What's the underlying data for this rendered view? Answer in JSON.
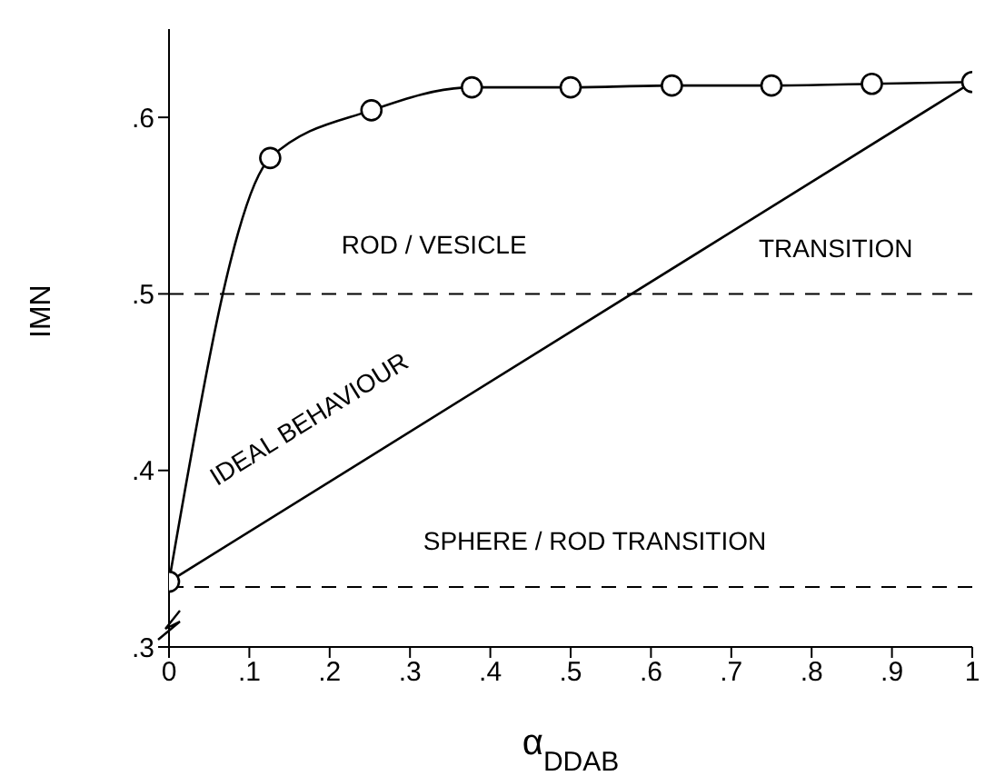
{
  "chart_data": {
    "type": "line",
    "xlabel": "α$_{DDAB}$",
    "ylabel": "IMN",
    "xlim": [
      0,
      1
    ],
    "ylim": [
      0.3,
      0.65
    ],
    "xticks": [
      0,
      {
        "value": 0.1,
        "label": ".1"
      },
      {
        "value": 0.2,
        "label": ".2"
      },
      {
        "value": 0.3,
        "label": ".3"
      },
      {
        "value": 0.4,
        "label": ".4"
      },
      {
        "value": 0.5,
        "label": ".5"
      },
      {
        "value": 0.6,
        "label": ".6"
      },
      {
        "value": 0.7,
        "label": ".7"
      },
      {
        "value": 0.8,
        "label": ".8"
      },
      {
        "value": 0.9,
        "label": ".9"
      },
      1
    ],
    "yticks": [
      {
        "value": 0.3,
        "label": ".3"
      },
      {
        "value": 0.4,
        "label": ".4"
      },
      {
        "value": 0.5,
        "label": ".5"
      },
      {
        "value": 0.6,
        "label": ".6"
      }
    ],
    "series": [
      {
        "color": "#000000",
        "marker": "circle",
        "x": [
          0,
          0.126,
          0.252,
          0.377,
          0.5,
          0.626,
          0.75,
          0.875,
          1
        ],
        "values": [
          0.337,
          0.577,
          0.604,
          0.617,
          0.617,
          0.618,
          0.618,
          0.619,
          0.62
        ]
      },
      {
        "color": "#000000",
        "marker": "none",
        "x": [
          0,
          1
        ],
        "values": [
          0.337,
          0.62
        ]
      }
    ],
    "ref_lines": [
      {
        "axis": "y",
        "value": 0.5,
        "line_style": "dashed"
      },
      {
        "axis": "y",
        "value": 0.334,
        "line_style": "dashed"
      }
    ],
    "annotations": [
      "ROD / VESICLE",
      "TRANSITION",
      "IDEAL BEHAVIOUR",
      "SPHERE / ROD TRANSITION"
    ]
  }
}
